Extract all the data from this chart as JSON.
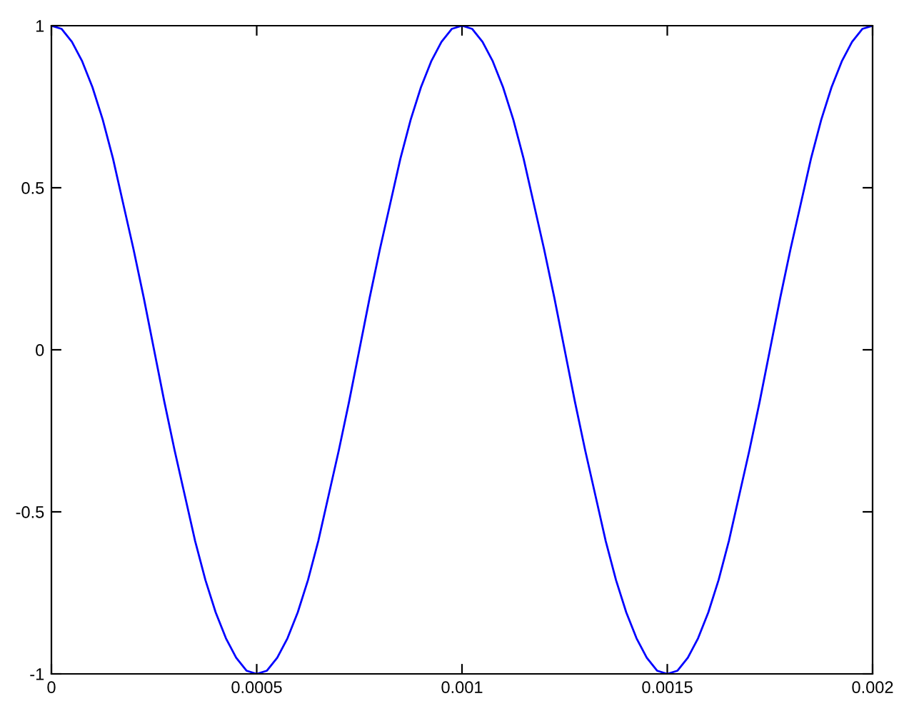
{
  "chart_data": {
    "type": "line",
    "xlim": [
      0,
      0.002
    ],
    "ylim": [
      -1,
      1
    ],
    "xticks": [
      0,
      0.0005,
      0.001,
      0.0015,
      0.002
    ],
    "yticks": [
      -1,
      -0.5,
      0,
      0.5,
      1
    ],
    "grid": false,
    "line_style": "solid",
    "x": [
      0,
      2.5e-05,
      5e-05,
      7.5e-05,
      0.0001,
      0.000125,
      0.00015,
      0.000175,
      0.0002,
      0.000225,
      0.00025,
      0.000275,
      0.0003,
      0.000325,
      0.00035,
      0.000375,
      0.0004,
      0.000425,
      0.00045,
      0.000475,
      0.0005,
      0.000525,
      0.00055,
      0.000575,
      0.0006,
      0.000625,
      0.00065,
      0.000675,
      0.0007,
      0.000725,
      0.00075,
      0.000775,
      0.0008,
      0.000825,
      0.00085,
      0.000875,
      0.0009,
      0.000925,
      0.00095,
      0.000975,
      0.001,
      0.001025,
      0.00105,
      0.001075,
      0.0011,
      0.001125,
      0.00115,
      0.001175,
      0.0012,
      0.001225,
      0.00125,
      0.001275,
      0.0013,
      0.001325,
      0.00135,
      0.001375,
      0.0014,
      0.001425,
      0.00145,
      0.001475,
      0.0015,
      0.001525,
      0.00155,
      0.001575,
      0.0016,
      0.001625,
      0.00165,
      0.001675,
      0.0017,
      0.001725,
      0.00175,
      0.001775,
      0.0018,
      0.001825,
      0.00185,
      0.001875,
      0.0019,
      0.001925,
      0.00195,
      0.001975,
      0.002
    ],
    "series": [
      {
        "color": "#0000ff",
        "values": [
          1,
          0.99,
          0.95,
          0.89,
          0.81,
          0.71,
          0.59,
          0.45,
          0.31,
          0.16,
          0,
          -0.16,
          -0.31,
          -0.45,
          -0.59,
          -0.71,
          -0.81,
          -0.89,
          -0.95,
          -0.99,
          -1,
          -0.99,
          -0.95,
          -0.89,
          -0.81,
          -0.71,
          -0.59,
          -0.45,
          -0.31,
          -0.16,
          0,
          0.16,
          0.31,
          0.45,
          0.59,
          0.71,
          0.81,
          0.89,
          0.95,
          0.99,
          1,
          0.99,
          0.95,
          0.89,
          0.81,
          0.71,
          0.59,
          0.45,
          0.31,
          0.16,
          0,
          -0.16,
          -0.31,
          -0.45,
          -0.59,
          -0.71,
          -0.81,
          -0.89,
          -0.95,
          -0.99,
          -1,
          -0.99,
          -0.95,
          -0.89,
          -0.81,
          -0.71,
          -0.59,
          -0.45,
          -0.31,
          -0.16,
          0,
          0.16,
          0.31,
          0.45,
          0.59,
          0.71,
          0.81,
          0.89,
          0.95,
          0.99,
          1
        ]
      }
    ]
  }
}
